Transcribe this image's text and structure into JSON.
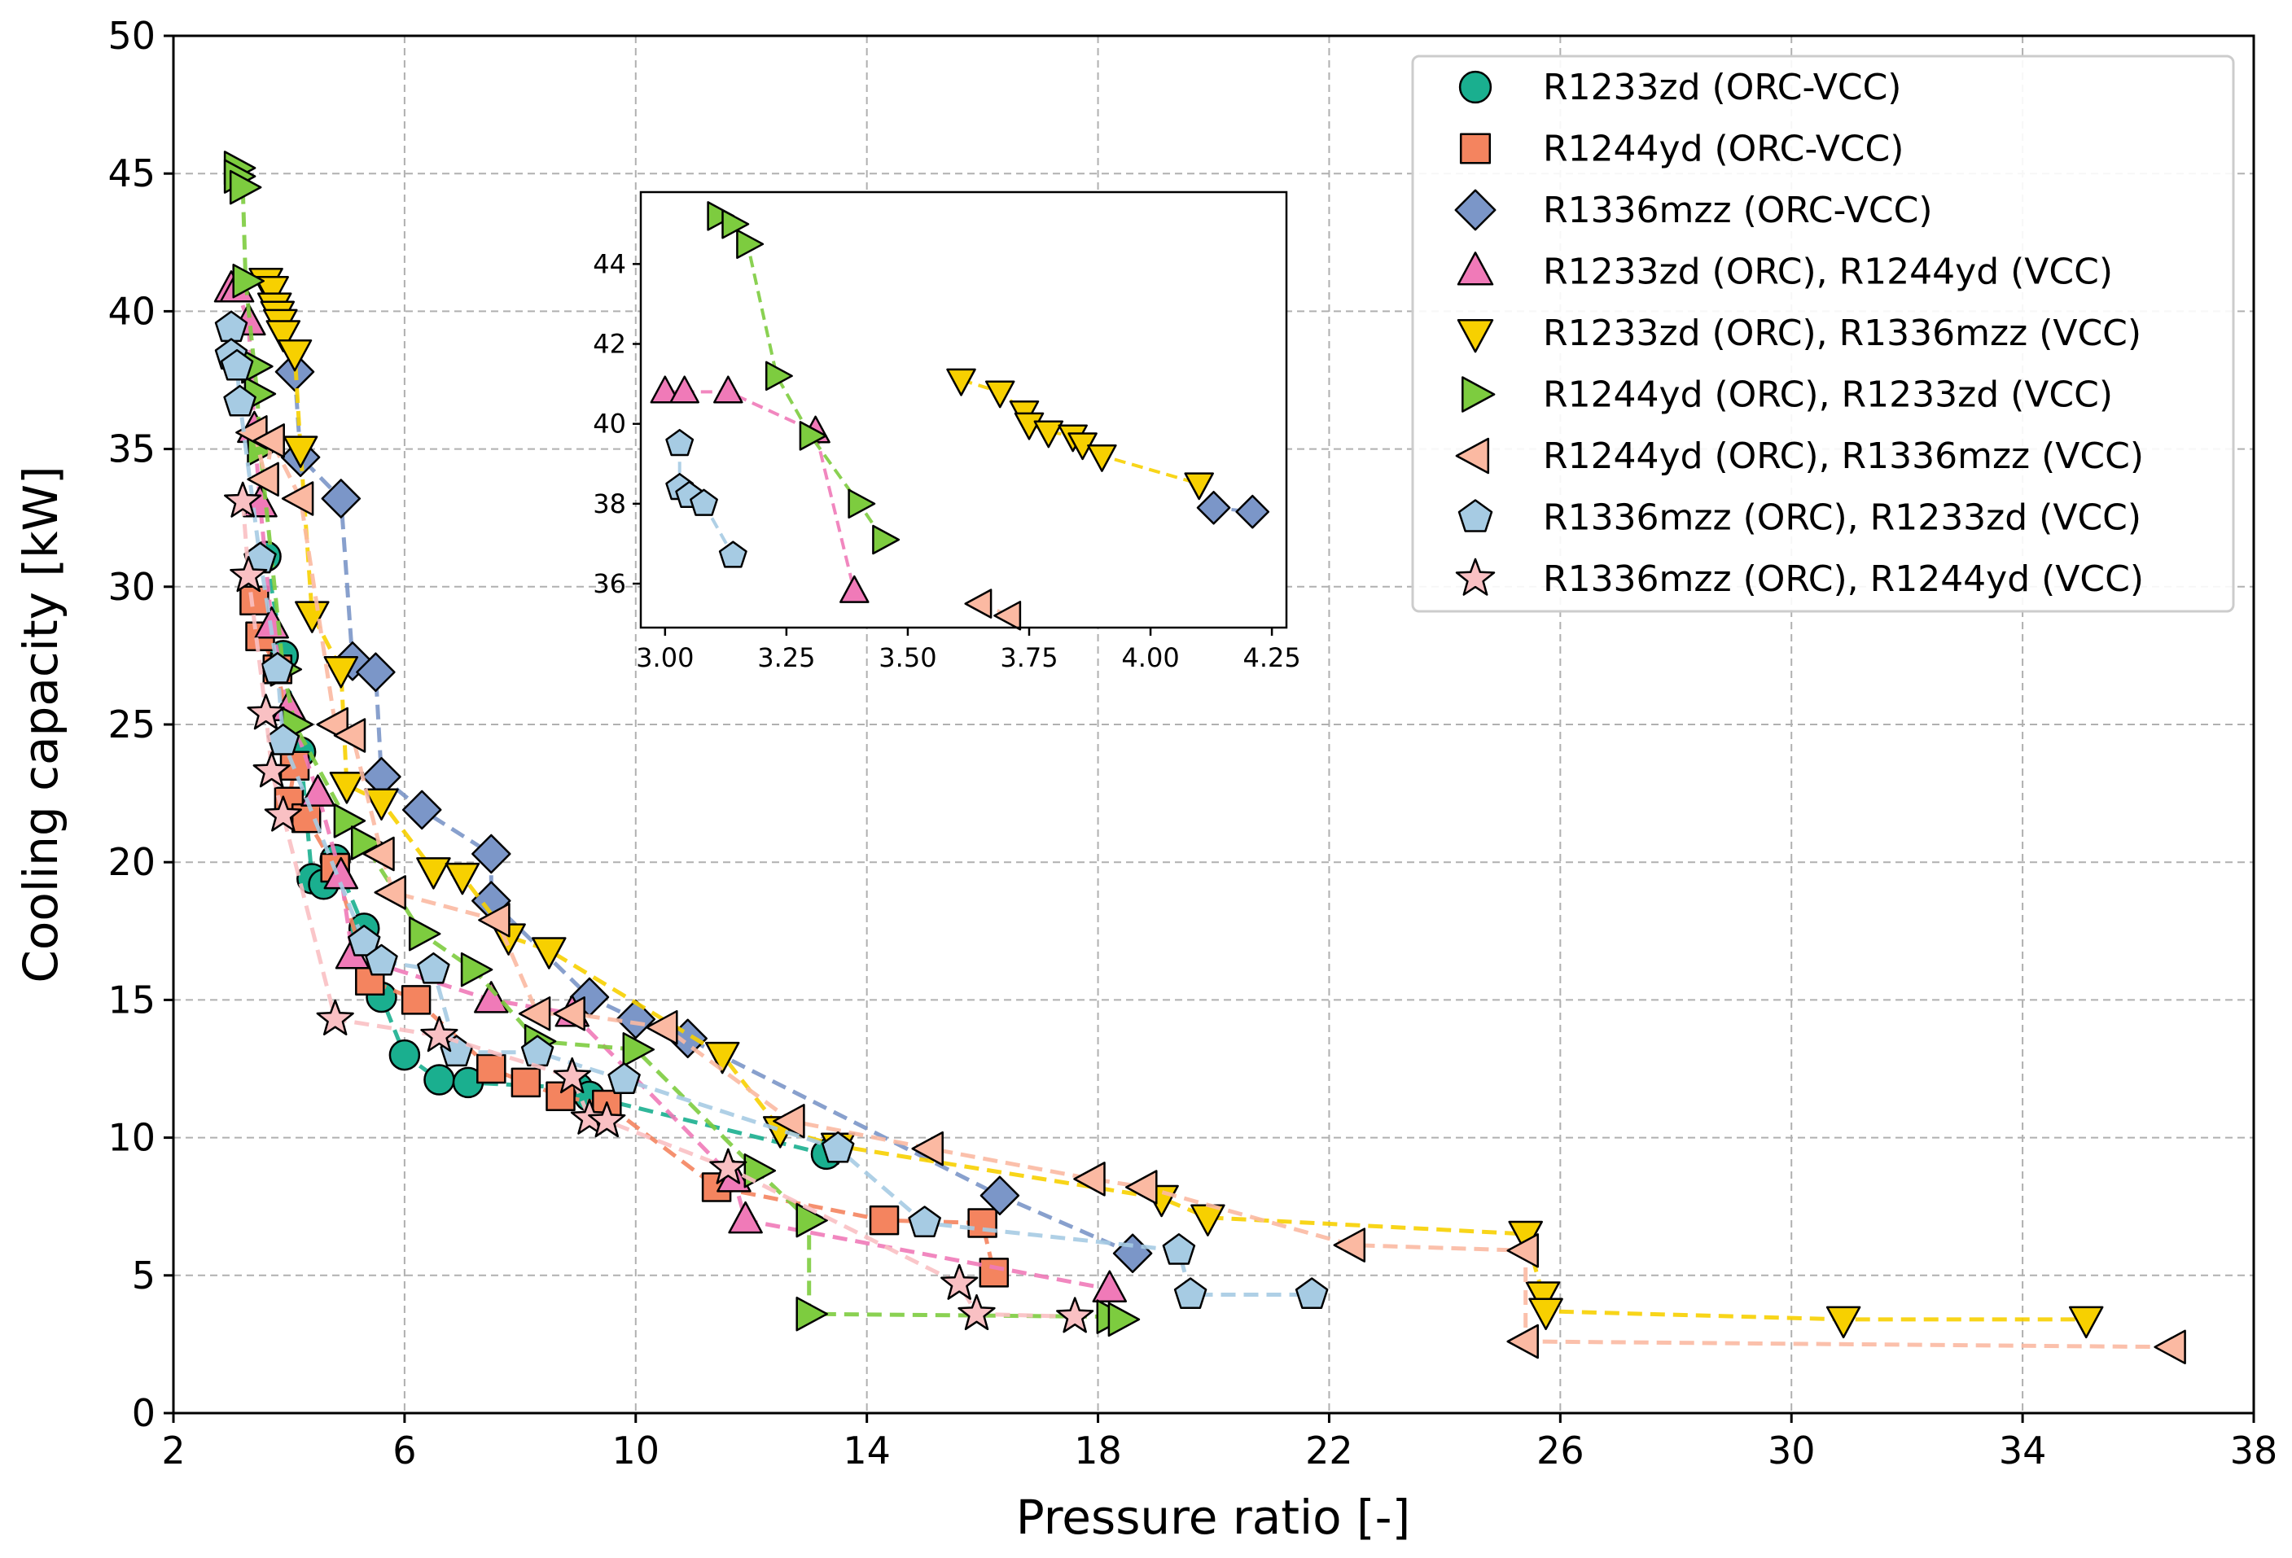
{
  "chart_data": [
    {
      "type": "scatter",
      "role": "main",
      "title": "",
      "xlabel": "Pressure ratio [-]",
      "ylabel": "Cooling capacity [kW]",
      "xlim": [
        2,
        38
      ],
      "ylim": [
        0,
        50
      ],
      "xticks": [
        2,
        6,
        10,
        14,
        18,
        22,
        26,
        30,
        34,
        38
      ],
      "yticks": [
        0,
        5,
        10,
        15,
        20,
        25,
        30,
        35,
        40,
        45,
        50
      ],
      "grid": true,
      "legend_position": "top-right",
      "series": [
        {
          "name": "R1233zd (ORC-VCC)",
          "marker": "circle",
          "color": "#1aaf8f",
          "points": [
            [
              3.6,
              31.1
            ],
            [
              3.9,
              27.5
            ],
            [
              4.2,
              24
            ],
            [
              4.4,
              19.4
            ],
            [
              4.6,
              19.2
            ],
            [
              4.8,
              20.1
            ],
            [
              5.3,
              17.6
            ],
            [
              5.6,
              15.1
            ],
            [
              6.0,
              13.0
            ],
            [
              6.6,
              12.1
            ],
            [
              7.1,
              12.0
            ],
            [
              9.0,
              11.8
            ],
            [
              9.2,
              11.5
            ],
            [
              13.3,
              9.4
            ]
          ]
        },
        {
          "name": "R1244yd (ORC-VCC)",
          "marker": "square",
          "color": "#f4845f",
          "points": [
            [
              3.4,
              29.5
            ],
            [
              3.5,
              28.2
            ],
            [
              3.8,
              27.0
            ],
            [
              4.1,
              23.5
            ],
            [
              4.0,
              22.2
            ],
            [
              4.3,
              21.6
            ],
            [
              4.8,
              19.8
            ],
            [
              5.4,
              15.7
            ],
            [
              6.2,
              15.0
            ],
            [
              7.5,
              12.5
            ],
            [
              8.1,
              12.0
            ],
            [
              8.7,
              11.5
            ],
            [
              9.5,
              11.2
            ],
            [
              11.4,
              8.2
            ],
            [
              14.3,
              7.0
            ],
            [
              16.0,
              6.9
            ],
            [
              16.2,
              5.1
            ]
          ]
        },
        {
          "name": "R1336mzz (ORC-VCC)",
          "marker": "diamond",
          "color": "#7b96c8",
          "points": [
            [
              4.1,
              37.8
            ],
            [
              4.2,
              34.7
            ],
            [
              4.9,
              33.2
            ],
            [
              5.1,
              27.3
            ],
            [
              5.5,
              26.9
            ],
            [
              5.6,
              23.1
            ],
            [
              6.3,
              21.9
            ],
            [
              7.5,
              20.3
            ],
            [
              7.5,
              18.6
            ],
            [
              9.2,
              15.1
            ],
            [
              10.0,
              14.3
            ],
            [
              10.9,
              13.6
            ],
            [
              16.3,
              7.9
            ],
            [
              18.6,
              5.8
            ]
          ]
        },
        {
          "name": "R1233zd (ORC), R1244yd (VCC)",
          "marker": "triangle-up",
          "color": "#f07ab8",
          "points": [
            [
              3.0,
              40.8
            ],
            [
              3.1,
              40.8
            ],
            [
              3.3,
              39.6
            ],
            [
              3.4,
              35.7
            ],
            [
              3.5,
              33.0
            ],
            [
              3.7,
              28.6
            ],
            [
              4.0,
              25.6
            ],
            [
              4.5,
              22.5
            ],
            [
              4.9,
              19.5
            ],
            [
              5.1,
              16.6
            ],
            [
              7.5,
              15.0
            ],
            [
              8.9,
              14.5
            ],
            [
              11.7,
              8.5
            ],
            [
              11.9,
              7.0
            ],
            [
              18.2,
              4.5
            ]
          ]
        },
        {
          "name": "R1233zd (ORC), R1336mzz (VCC)",
          "marker": "triangle-down",
          "color": "#f7d000",
          "points": [
            [
              3.6,
              41.1
            ],
            [
              3.7,
              40.8
            ],
            [
              3.75,
              40.2
            ],
            [
              3.8,
              39.9
            ],
            [
              3.85,
              39.6
            ],
            [
              3.9,
              39.2
            ],
            [
              4.1,
              38.5
            ],
            [
              4.2,
              35.0
            ],
            [
              4.4,
              29.0
            ],
            [
              4.9,
              27.0
            ],
            [
              5.0,
              22.8
            ],
            [
              5.6,
              22.2
            ],
            [
              6.5,
              19.7
            ],
            [
              7.0,
              19.5
            ],
            [
              7.8,
              17.3
            ],
            [
              8.5,
              16.8
            ],
            [
              11.5,
              13.0
            ],
            [
              12.5,
              10.3
            ],
            [
              13.5,
              9.7
            ],
            [
              19.1,
              7.8
            ],
            [
              19.9,
              7.1
            ],
            [
              25.4,
              6.5
            ],
            [
              25.7,
              4.3
            ],
            [
              25.75,
              3.7
            ],
            [
              30.9,
              3.4
            ],
            [
              35.1,
              3.4
            ]
          ]
        },
        {
          "name": "R1244yd (ORC), R1233zd (VCC)",
          "marker": "triangle-right",
          "color": "#7dcc3f",
          "points": [
            [
              3.1,
              45.2
            ],
            [
              3.1,
              44.9
            ],
            [
              3.2,
              44.5
            ],
            [
              3.25,
              41.1
            ],
            [
              3.4,
              38.0
            ],
            [
              3.45,
              37.0
            ],
            [
              3.5,
              35.0
            ],
            [
              3.9,
              27.0
            ],
            [
              4.1,
              25.0
            ],
            [
              5.0,
              21.5
            ],
            [
              5.3,
              20.7
            ],
            [
              6.3,
              17.4
            ],
            [
              7.2,
              16.1
            ],
            [
              8.3,
              13.5
            ],
            [
              10.0,
              13.2
            ],
            [
              12.1,
              8.8
            ],
            [
              13.0,
              7.0
            ],
            [
              13.0,
              3.6
            ],
            [
              18.2,
              3.5
            ],
            [
              18.4,
              3.4
            ]
          ]
        },
        {
          "name": "R1244yd (ORC), R1336mzz (VCC)",
          "marker": "triangle-left",
          "color": "#fbb9a2",
          "points": [
            [
              3.4,
              35.6
            ],
            [
              3.6,
              33.9
            ],
            [
              3.7,
              35.3
            ],
            [
              4.2,
              33.2
            ],
            [
              4.8,
              25.0
            ],
            [
              5.1,
              24.6
            ],
            [
              5.6,
              20.3
            ],
            [
              5.8,
              18.9
            ],
            [
              7.6,
              17.9
            ],
            [
              8.3,
              14.5
            ],
            [
              8.9,
              14.5
            ],
            [
              10.5,
              14.0
            ],
            [
              12.7,
              10.6
            ],
            [
              15.1,
              9.6
            ],
            [
              17.9,
              8.5
            ],
            [
              18.8,
              8.2
            ],
            [
              22.4,
              6.1
            ],
            [
              25.4,
              5.9
            ],
            [
              25.4,
              2.6
            ],
            [
              36.6,
              2.4
            ]
          ]
        },
        {
          "name": "R1336mzz (ORC), R1233zd (VCC)",
          "marker": "pentagon",
          "color": "#a6cbe3",
          "points": [
            [
              3.0,
              39.4
            ],
            [
              3.0,
              38.4
            ],
            [
              3.1,
              38.0
            ],
            [
              3.15,
              36.7
            ],
            [
              3.5,
              31.0
            ],
            [
              3.8,
              27.0
            ],
            [
              3.9,
              24.4
            ],
            [
              5.3,
              17.1
            ],
            [
              5.6,
              16.4
            ],
            [
              6.5,
              16.1
            ],
            [
              6.9,
              13.1
            ],
            [
              8.3,
              13.1
            ],
            [
              9.8,
              12.1
            ],
            [
              13.5,
              9.6
            ],
            [
              15.0,
              6.9
            ],
            [
              19.4,
              5.9
            ],
            [
              19.6,
              4.3
            ],
            [
              21.7,
              4.3
            ]
          ]
        },
        {
          "name": "R1336mzz (ORC), R1244yd (VCC)",
          "marker": "star",
          "color": "#f9c0c3",
          "points": [
            [
              3.2,
              33.1
            ],
            [
              3.3,
              30.4
            ],
            [
              3.6,
              25.4
            ],
            [
              3.7,
              23.3
            ],
            [
              3.9,
              21.7
            ],
            [
              4.8,
              14.3
            ],
            [
              6.6,
              13.7
            ],
            [
              8.9,
              12.2
            ],
            [
              9.2,
              10.7
            ],
            [
              9.5,
              10.6
            ],
            [
              11.6,
              8.9
            ],
            [
              15.6,
              4.7
            ],
            [
              15.9,
              3.6
            ],
            [
              17.6,
              3.5
            ]
          ]
        }
      ]
    },
    {
      "type": "scatter",
      "role": "inset",
      "title": "",
      "xlim": [
        2.95,
        4.28
      ],
      "ylim": [
        34.9,
        45.8
      ],
      "xticks": [
        "3.00",
        "3.25",
        "3.50",
        "3.75",
        "4.00",
        "4.25"
      ],
      "yticks": [
        "36",
        "38",
        "40",
        "42",
        "44"
      ],
      "grid": false,
      "series": [
        {
          "name": "R1336mzz (ORC-VCC)",
          "points": [
            [
              4.13,
              37.9
            ],
            [
              4.21,
              37.8
            ]
          ]
        },
        {
          "name": "R1233zd (ORC), R1244yd (VCC)",
          "points": [
            [
              3.0,
              40.8
            ],
            [
              3.04,
              40.8
            ],
            [
              3.13,
              40.8
            ],
            [
              3.31,
              39.8
            ],
            [
              3.39,
              35.8
            ]
          ]
        },
        {
          "name": "R1233zd (ORC), R1336mzz (VCC)",
          "points": [
            [
              3.61,
              41.1
            ],
            [
              3.69,
              40.8
            ],
            [
              3.74,
              40.3
            ],
            [
              3.75,
              40.0
            ],
            [
              3.79,
              39.8
            ],
            [
              3.84,
              39.7
            ],
            [
              3.86,
              39.5
            ],
            [
              3.9,
              39.2
            ],
            [
              4.1,
              38.5
            ]
          ]
        },
        {
          "name": "R1244yd (ORC), R1233zd (VCC)",
          "points": [
            [
              3.11,
              45.2
            ],
            [
              3.14,
              45.0
            ],
            [
              3.17,
              44.5
            ],
            [
              3.23,
              41.2
            ],
            [
              3.3,
              39.7
            ],
            [
              3.4,
              38.0
            ],
            [
              3.45,
              37.1
            ]
          ]
        },
        {
          "name": "R1244yd (ORC), R1336mzz (VCC)",
          "points": [
            [
              3.65,
              35.5
            ],
            [
              3.71,
              35.2
            ]
          ]
        },
        {
          "name": "R1336mzz (ORC), R1233zd (VCC)",
          "points": [
            [
              3.03,
              39.5
            ],
            [
              3.03,
              38.4
            ],
            [
              3.05,
              38.2
            ],
            [
              3.08,
              38.0
            ],
            [
              3.14,
              36.7
            ]
          ]
        }
      ]
    }
  ]
}
